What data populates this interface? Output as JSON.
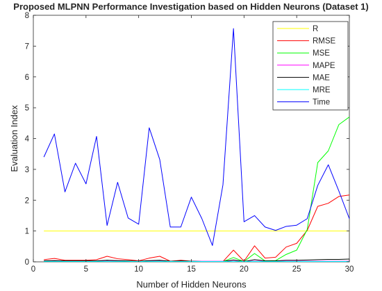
{
  "chart_data": {
    "type": "line",
    "title": "Proposed MLPNN Performance Investigation based on Hidden Neurons (Dataset 1)",
    "xlabel": "Number of Hidden Neurons",
    "ylabel": "Evaluation Index",
    "xlim": [
      0,
      30
    ],
    "ylim": [
      0,
      8
    ],
    "xticks": [
      0,
      5,
      10,
      15,
      20,
      25,
      30
    ],
    "yticks": [
      0,
      1,
      2,
      3,
      4,
      5,
      6,
      7,
      8
    ],
    "grid": false,
    "legend_position": "top-right",
    "x": [
      1,
      2,
      3,
      4,
      5,
      6,
      7,
      8,
      9,
      10,
      11,
      12,
      13,
      14,
      15,
      16,
      17,
      18,
      19,
      20,
      21,
      22,
      23,
      24,
      25,
      26,
      27,
      28,
      29,
      30
    ],
    "series": [
      {
        "name": "R",
        "color": "#ffff00",
        "values": [
          1,
          1,
          1,
          1,
          1,
          1,
          1,
          1,
          1,
          1,
          1,
          1,
          1,
          1,
          1,
          1,
          1,
          1,
          1,
          1,
          1,
          1,
          1,
          1,
          1,
          1,
          1,
          1,
          1,
          1
        ]
      },
      {
        "name": "RMSE",
        "color": "#ff0000",
        "values": [
          0.07,
          0.11,
          0.05,
          0.05,
          0.05,
          0.07,
          0.18,
          0.1,
          0.07,
          0.03,
          0.12,
          0.18,
          0.02,
          0.05,
          0.02,
          0.01,
          0.01,
          0.01,
          0.38,
          0.02,
          0.52,
          0.12,
          0.15,
          0.48,
          0.6,
          1.02,
          1.8,
          1.9,
          2.12,
          2.17
        ]
      },
      {
        "name": "MSE",
        "color": "#00ff00",
        "values": [
          0.01,
          0.02,
          0.01,
          0.01,
          0.01,
          0.01,
          0.05,
          0.02,
          0.01,
          0.01,
          0.02,
          0.04,
          0.01,
          0.01,
          0.01,
          0.01,
          0.01,
          0.01,
          0.14,
          0.01,
          0.27,
          0.03,
          0.04,
          0.24,
          0.38,
          1.05,
          3.22,
          3.6,
          4.45,
          4.7
        ]
      },
      {
        "name": "MAPE",
        "color": "#ff00ff",
        "values": [
          0.02,
          0.02,
          0.02,
          0.02,
          0.02,
          0.02,
          0.02,
          0.02,
          0.02,
          0.02,
          0.02,
          0.02,
          0.02,
          0.02,
          0.02,
          0.02,
          0.02,
          0.02,
          0.02,
          0.02,
          0.02,
          0.02,
          0.02,
          0.02,
          0.02,
          0.02,
          0.02,
          0.02,
          0.02,
          0.02
        ]
      },
      {
        "name": "MAE",
        "color": "#000000",
        "values": [
          0.03,
          0.04,
          0.03,
          0.03,
          0.03,
          0.03,
          0.05,
          0.04,
          0.03,
          0.02,
          0.04,
          0.05,
          0.02,
          0.03,
          0.02,
          0.01,
          0.01,
          0.01,
          0.06,
          0.01,
          0.07,
          0.03,
          0.03,
          0.05,
          0.05,
          0.06,
          0.07,
          0.08,
          0.08,
          0.09
        ]
      },
      {
        "name": "MRE",
        "color": "#00ffff",
        "values": [
          0.01,
          0.01,
          0.01,
          0.01,
          0.01,
          0.01,
          0.01,
          0.01,
          0.01,
          0.01,
          0.01,
          0.01,
          0.01,
          0.01,
          0.01,
          0.01,
          0.01,
          0.01,
          0.01,
          0.01,
          0.01,
          0.01,
          0.01,
          0.01,
          0.01,
          0.01,
          0.01,
          0.01,
          0.01,
          0.01
        ]
      },
      {
        "name": "Time",
        "color": "#0000ff",
        "values": [
          3.4,
          4.15,
          2.27,
          3.2,
          2.53,
          4.07,
          1.18,
          2.58,
          1.42,
          1.22,
          4.35,
          3.32,
          1.13,
          1.13,
          2.1,
          1.4,
          0.53,
          2.5,
          7.57,
          1.3,
          1.5,
          1.13,
          1.02,
          1.15,
          1.19,
          1.4,
          2.48,
          3.15,
          2.3,
          1.4
        ]
      }
    ]
  }
}
